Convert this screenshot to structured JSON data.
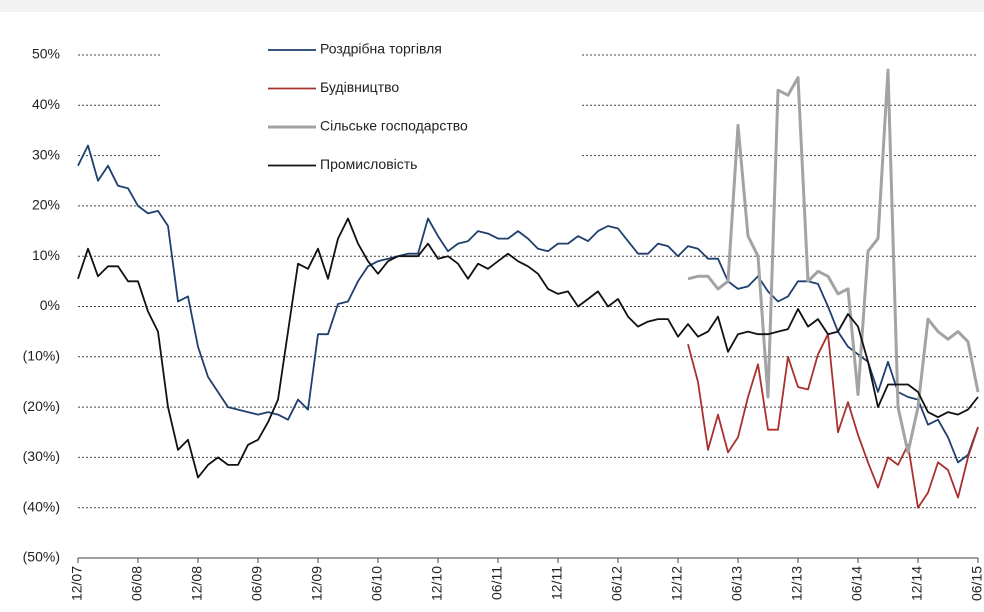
{
  "chart_data": {
    "type": "line",
    "categories": [
      "12/07",
      null,
      null,
      null,
      null,
      null,
      "06/08",
      null,
      null,
      null,
      null,
      null,
      "12/08",
      null,
      null,
      null,
      null,
      null,
      "06/09",
      null,
      null,
      null,
      null,
      null,
      "12/09",
      null,
      null,
      null,
      null,
      null,
      "06/10",
      null,
      null,
      null,
      null,
      null,
      "12/10",
      null,
      null,
      null,
      null,
      null,
      "06/11",
      null,
      null,
      null,
      null,
      null,
      "12/11",
      null,
      null,
      null,
      null,
      null,
      "06/12",
      null,
      null,
      null,
      null,
      null,
      "12/12",
      null,
      null,
      null,
      null,
      null,
      "06/13",
      null,
      null,
      null,
      null,
      null,
      "12/13",
      null,
      null,
      null,
      null,
      null,
      "06/14",
      null,
      null,
      null,
      null,
      null,
      "12/14",
      null,
      null,
      null,
      null,
      null,
      "06/15"
    ],
    "ylim": [
      -50,
      50
    ],
    "yticks": [
      {
        "value": 50,
        "label": "50%"
      },
      {
        "value": 40,
        "label": "40%"
      },
      {
        "value": 30,
        "label": "30%"
      },
      {
        "value": 20,
        "label": "20%"
      },
      {
        "value": 10,
        "label": "10%"
      },
      {
        "value": 0,
        "label": "0%"
      },
      {
        "value": -10,
        "label": "(10%)"
      },
      {
        "value": -20,
        "label": "(20%)"
      },
      {
        "value": -30,
        "label": "(30%)"
      },
      {
        "value": -40,
        "label": "(40%)"
      },
      {
        "value": -50,
        "label": "(50%)"
      }
    ],
    "grid": true,
    "legend": "top",
    "series": [
      {
        "name": "Роздрібна торгівля",
        "color": "#1f3f6e",
        "values": [
          28,
          32,
          25,
          28,
          24,
          23.5,
          20,
          18.5,
          19,
          16,
          1,
          2,
          -8,
          -14,
          -17,
          -20,
          -20.5,
          -21,
          -21.5,
          -21,
          -21.5,
          -22.5,
          -18.5,
          -20.5,
          -5.5,
          -5.5,
          0.5,
          1,
          5,
          8,
          9,
          9.5,
          10,
          10.5,
          10.5,
          17.5,
          14,
          11,
          12.5,
          13,
          15,
          14.5,
          13.5,
          13.5,
          15,
          13.5,
          11.5,
          11,
          12.5,
          12.5,
          14,
          13,
          15,
          16,
          15.5,
          13,
          10.5,
          10.5,
          12.5,
          12,
          10,
          12,
          11.5,
          9.5,
          9.5,
          5,
          3.5,
          4,
          6,
          3,
          1,
          2,
          5,
          5,
          4.5,
          0,
          -5,
          -8,
          -9.5,
          -11,
          -17,
          -11,
          -17,
          -18,
          -18.5,
          -23.5,
          -22.5,
          -26,
          -31,
          -29.5,
          -24
        ]
      },
      {
        "name": "Будівництво",
        "color": "#a8312f",
        "values": [
          null,
          null,
          null,
          null,
          null,
          null,
          null,
          null,
          null,
          null,
          null,
          null,
          null,
          null,
          null,
          null,
          null,
          null,
          null,
          null,
          null,
          null,
          null,
          null,
          null,
          null,
          null,
          null,
          null,
          null,
          null,
          null,
          null,
          null,
          null,
          null,
          null,
          null,
          null,
          null,
          null,
          null,
          null,
          null,
          null,
          null,
          null,
          null,
          null,
          null,
          null,
          null,
          null,
          null,
          null,
          null,
          null,
          null,
          null,
          null,
          null,
          -7.5,
          -15,
          -28.5,
          -21.5,
          -29,
          -26,
          -18,
          -11.5,
          -24.5,
          -24.5,
          -10,
          -16,
          -16.5,
          -9.5,
          -5.5,
          -25,
          -19,
          -25.5,
          -31,
          -36,
          -30,
          -31.5,
          -27.5,
          -40,
          -37,
          -31,
          -32.5,
          -38,
          -30,
          -24
        ]
      },
      {
        "name": "Сільське господарство",
        "color": "#a3a3a3",
        "values": [
          null,
          null,
          null,
          null,
          null,
          null,
          null,
          null,
          null,
          null,
          null,
          null,
          null,
          null,
          null,
          null,
          null,
          null,
          null,
          null,
          null,
          null,
          null,
          null,
          null,
          null,
          null,
          null,
          null,
          null,
          null,
          null,
          null,
          null,
          null,
          null,
          null,
          null,
          null,
          null,
          null,
          null,
          null,
          null,
          null,
          null,
          null,
          null,
          null,
          null,
          null,
          null,
          null,
          null,
          null,
          null,
          null,
          null,
          null,
          null,
          null,
          5.5,
          6,
          6,
          3.5,
          5,
          36,
          14,
          10,
          -18,
          43,
          42,
          45.5,
          5,
          7,
          6,
          2.5,
          3.5,
          -17.5,
          11,
          13.5,
          47,
          -20,
          -29,
          -20,
          -2.5,
          -5,
          -6.5,
          -5,
          -7,
          -17
        ]
      },
      {
        "name": "Промисловість",
        "color": "#111111",
        "values": [
          5.5,
          11.5,
          6,
          8,
          8,
          5,
          5,
          -1,
          -5,
          -20,
          -28.5,
          -26.5,
          -34,
          -31.5,
          -30,
          -31.5,
          -31.5,
          -27.5,
          -26.5,
          -23,
          -18.5,
          -5,
          8.5,
          7.5,
          11.5,
          5.5,
          13.5,
          17.5,
          12.5,
          9,
          6.5,
          9,
          10,
          10,
          10,
          12.5,
          9.5,
          10,
          8.5,
          5.5,
          8.5,
          7.5,
          9,
          10.5,
          9,
          8,
          6.5,
          3.5,
          2.5,
          3,
          0,
          1.5,
          3,
          0,
          1.5,
          -2,
          -4,
          -3,
          -2.5,
          -2.5,
          -6,
          -3.5,
          -6,
          -5,
          -2,
          -9,
          -5.5,
          -5,
          -5.5,
          -5.5,
          -5,
          -4.5,
          -0.5,
          -4,
          -2.5,
          -5.5,
          -5,
          -1.5,
          -4,
          -11,
          -20,
          -15.5,
          -15.5,
          -15.5,
          -17,
          -21,
          -22,
          -21,
          -21.5,
          -20.5,
          -18
        ]
      }
    ]
  }
}
